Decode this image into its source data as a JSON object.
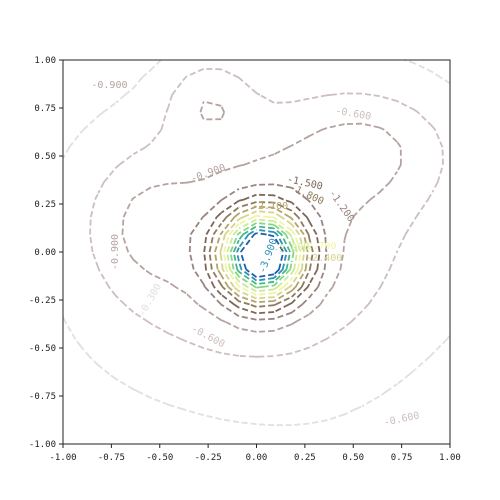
{
  "chart_data": {
    "type": "contour",
    "title": "",
    "xlabel": "",
    "ylabel": "",
    "xlim": [
      -1.0,
      1.0
    ],
    "ylim": [
      -1.0,
      1.0
    ],
    "grid": false,
    "line_style": "dashed",
    "x_ticks": [
      "-1.00",
      "-0.75",
      "-0.50",
      "-0.25",
      "0.00",
      "0.25",
      "0.50",
      "0.75",
      "1.00"
    ],
    "y_ticks": [
      "-1.00",
      "-0.75",
      "-0.50",
      "-0.25",
      "0.00",
      "0.25",
      "0.50",
      "0.75",
      "1.00"
    ],
    "levels": [
      {
        "value": -0.3,
        "color": "#e2dfdc"
      },
      {
        "value": -0.6,
        "color": "#cdbfbd"
      },
      {
        "value": -0.9,
        "color": "#b5a3a0"
      },
      {
        "value": -1.2,
        "color": "#9a8480"
      },
      {
        "value": -1.5,
        "color": "#7d6658"
      },
      {
        "value": -1.8,
        "color": "#8e7a5e"
      },
      {
        "value": -2.1,
        "color": "#b3a46a"
      },
      {
        "value": -2.4,
        "color": "#d7d48e"
      },
      {
        "value": -2.7,
        "color": "#f0f5a2"
      },
      {
        "value": -3.0,
        "color": "#c9eb97"
      },
      {
        "value": -3.3,
        "color": "#86d682"
      },
      {
        "value": -3.6,
        "color": "#3fb88c"
      },
      {
        "value": -3.9,
        "color": "#2f8fb8"
      },
      {
        "value": -4.2,
        "color": "#1f5fa8"
      }
    ],
    "contour_labels": [
      {
        "text": "-0.900",
        "x": -0.76,
        "y": 0.87,
        "angle": 0,
        "level": -0.9
      },
      {
        "text": "-0.600",
        "x": 0.5,
        "y": 0.72,
        "angle": 10,
        "level": -0.6
      },
      {
        "text": "-0.900",
        "x": -0.25,
        "y": 0.41,
        "angle": -20,
        "level": -0.9
      },
      {
        "text": "-1.500",
        "x": 0.25,
        "y": 0.36,
        "angle": 12,
        "level": -1.5
      },
      {
        "text": "-1.800",
        "x": 0.26,
        "y": 0.3,
        "angle": 25,
        "level": -1.8
      },
      {
        "text": "-1.200",
        "x": 0.44,
        "y": 0.24,
        "angle": 55,
        "level": -1.2
      },
      {
        "text": "-2.100",
        "x": 0.07,
        "y": 0.24,
        "angle": 0,
        "level": -2.1
      },
      {
        "text": "-0.900",
        "x": -0.73,
        "y": 0.0,
        "angle": -90,
        "level": -0.9
      },
      {
        "text": "-0.300",
        "x": -0.55,
        "y": -0.25,
        "angle": -60,
        "level": -0.3
      },
      {
        "text": "-0.600",
        "x": -0.25,
        "y": -0.44,
        "angle": 28,
        "level": -0.6
      },
      {
        "text": "-0.600",
        "x": 0.75,
        "y": -0.87,
        "angle": -12,
        "level": -0.6
      },
      {
        "text": "-3.900",
        "x": 0.06,
        "y": -0.02,
        "angle": -70,
        "level": -3.9
      },
      {
        "text": "-3.000",
        "x": 0.18,
        "y": 0.02,
        "angle": -5,
        "level": -3.0
      },
      {
        "text": "-2.700",
        "x": 0.32,
        "y": 0.03,
        "angle": 0,
        "level": -2.7
      },
      {
        "text": "-2.400",
        "x": 0.35,
        "y": -0.03,
        "angle": 0,
        "level": -2.4
      }
    ]
  }
}
